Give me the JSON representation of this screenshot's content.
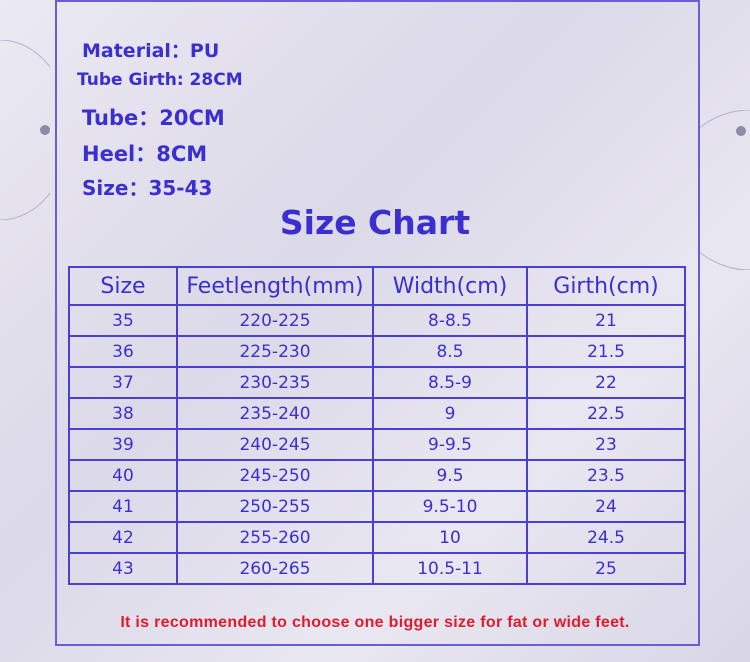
{
  "specs": [
    {
      "label": "Material：PU"
    },
    {
      "label": "Tube Girth: 28CM"
    },
    {
      "label": "Tube：20CM"
    },
    {
      "label": "Heel：8CM"
    },
    {
      "label": "Size：35-43"
    }
  ],
  "title": "Size Chart",
  "table": {
    "headers": [
      "Size",
      "Feetlength(mm)",
      "Width(cm)",
      "Girth(cm)"
    ],
    "rows": [
      [
        "35",
        "220-225",
        "8-8.5",
        "21"
      ],
      [
        "36",
        "225-230",
        "8.5",
        "21.5"
      ],
      [
        "37",
        "230-235",
        "8.5-9",
        "22"
      ],
      [
        "38",
        "235-240",
        "9",
        "22.5"
      ],
      [
        "39",
        "240-245",
        "9-9.5",
        "23"
      ],
      [
        "40",
        "245-250",
        "9.5",
        "23.5"
      ],
      [
        "41",
        "250-255",
        "9.5-10",
        "24"
      ],
      [
        "42",
        "255-260",
        "10",
        "24.5"
      ],
      [
        "43",
        "260-265",
        "10.5-11",
        "25"
      ]
    ]
  },
  "note": "It is recommended to choose one  bigger size for fat or wide feet.",
  "colors": {
    "text": "#3b2fd0",
    "note": "#e01c2c",
    "border": "#4a3fd0"
  }
}
